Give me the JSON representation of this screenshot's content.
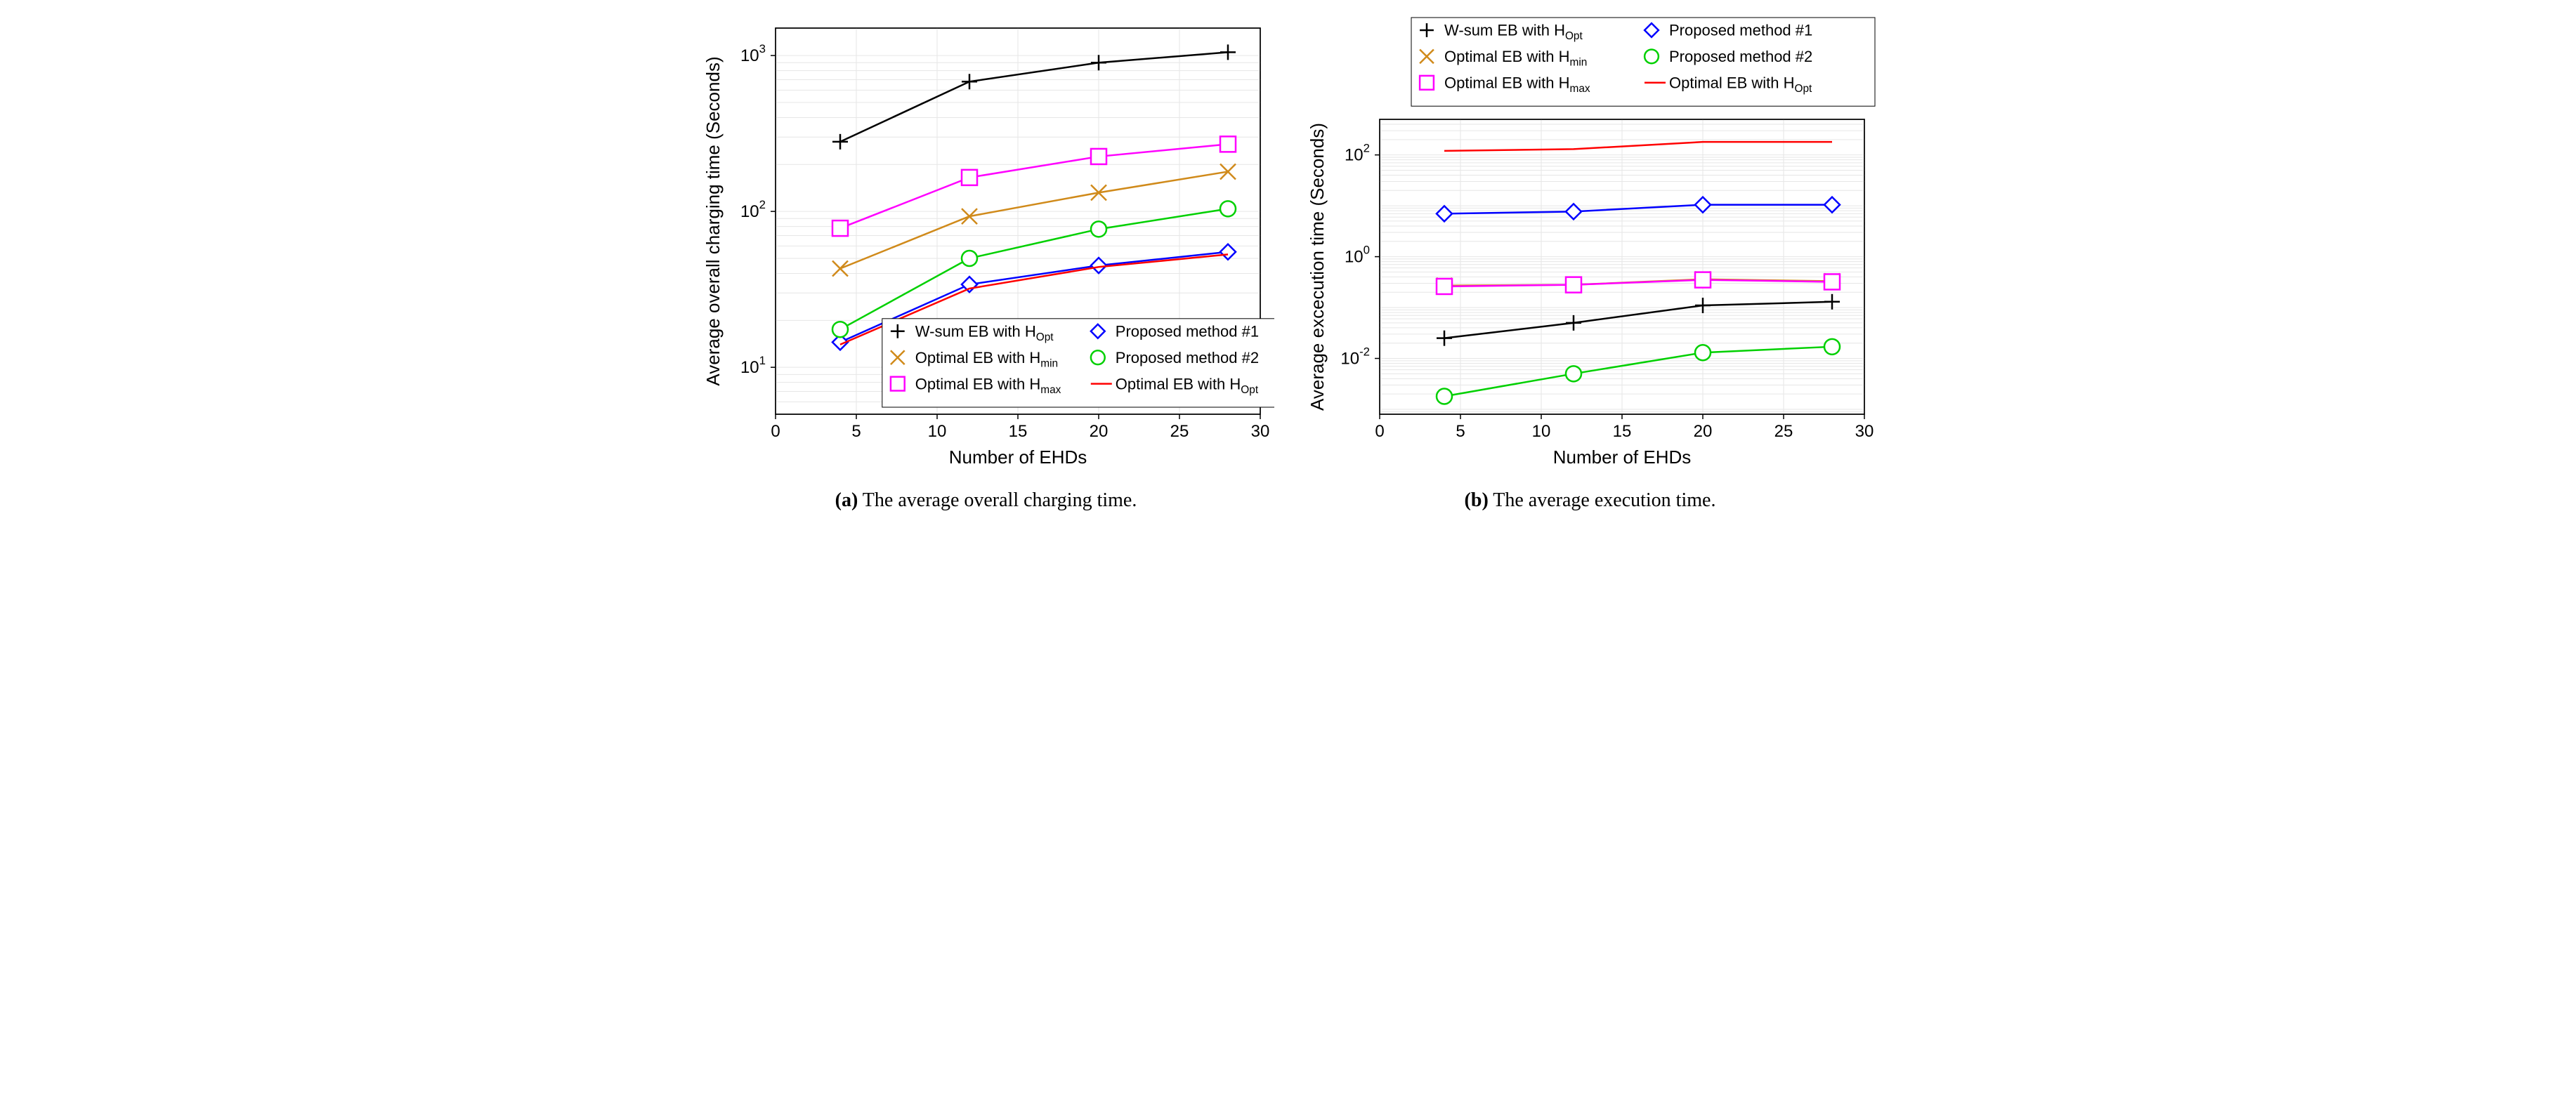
{
  "figure": {
    "caption_a": {
      "label": "(a)",
      "text": " The average overall charging time."
    },
    "caption_b": {
      "label": "(b)",
      "text": " The average execution time."
    }
  },
  "chart_a": {
    "type": "line-log",
    "xlabel": "Number of EHDs",
    "ylabel": "Average overall charging time (Seconds)",
    "label_fontsize": 26,
    "tick_fontsize": 24,
    "xlim": [
      0,
      30
    ],
    "xticks": [
      0,
      5,
      10,
      15,
      20,
      25,
      30
    ],
    "ylim": [
      5,
      1500
    ],
    "yticks": [
      10,
      100,
      1000
    ],
    "ytick_labels": [
      "10^1",
      "10^2",
      "10^3"
    ],
    "background_color": "#ffffff",
    "grid_color": "#e6e6e6",
    "axis_color": "#000000",
    "line_width": 2.5,
    "marker_size": 11,
    "legend_fontsize": 22,
    "legend_pos": "lower-inside",
    "series": [
      {
        "key": "wsum",
        "label": "W-sum EB with H",
        "sub": "Opt",
        "color": "#000000",
        "marker": "plus",
        "x": [
          4,
          12,
          20,
          28
        ],
        "y": [
          280,
          680,
          900,
          1050
        ]
      },
      {
        "key": "optmin",
        "label": "Optimal EB with H",
        "sub": "min",
        "color": "#d08a1a",
        "marker": "x",
        "x": [
          4,
          12,
          20,
          28
        ],
        "y": [
          43,
          93,
          132,
          180
        ]
      },
      {
        "key": "optmax",
        "label": "Optimal EB with H",
        "sub": "max",
        "color": "#ff00ff",
        "marker": "square",
        "x": [
          4,
          12,
          20,
          28
        ],
        "y": [
          78,
          165,
          225,
          270
        ]
      },
      {
        "key": "prop1",
        "label": "Proposed method #1",
        "sub": "",
        "color": "#0000ff",
        "marker": "diamond",
        "x": [
          4,
          12,
          20,
          28
        ],
        "y": [
          14.5,
          34,
          45,
          55
        ]
      },
      {
        "key": "prop2",
        "label": "Proposed method #2",
        "sub": "",
        "color": "#00d000",
        "marker": "circle",
        "x": [
          4,
          12,
          20,
          28
        ],
        "y": [
          17.5,
          50,
          77,
          104
        ]
      },
      {
        "key": "optopt",
        "label": "Optimal EB with H",
        "sub": "Opt",
        "color": "#ff0000",
        "marker": "none",
        "x": [
          4,
          12,
          20,
          28
        ],
        "y": [
          14,
          32,
          44,
          53
        ]
      }
    ]
  },
  "chart_b": {
    "type": "line-log",
    "xlabel": "Number of EHDs",
    "ylabel": "Average excecution time (Seconds)",
    "label_fontsize": 26,
    "tick_fontsize": 24,
    "xlim": [
      0,
      30
    ],
    "xticks": [
      0,
      5,
      10,
      15,
      20,
      25,
      30
    ],
    "ylim": [
      0.0008,
      500
    ],
    "yticks": [
      0.01,
      1,
      100
    ],
    "ytick_labels": [
      "10^-2",
      "10^0",
      "10^2"
    ],
    "background_color": "#ffffff",
    "grid_color": "#e6e6e6",
    "axis_color": "#000000",
    "line_width": 2.5,
    "marker_size": 11,
    "legend_fontsize": 22,
    "legend_pos": "top-outside",
    "series": [
      {
        "key": "wsum",
        "label": "W-sum EB with H",
        "sub": "Opt",
        "color": "#000000",
        "marker": "plus",
        "x": [
          4,
          12,
          20,
          28
        ],
        "y": [
          0.025,
          0.05,
          0.11,
          0.13
        ]
      },
      {
        "key": "optmin",
        "label": "Optimal EB with H",
        "sub": "min",
        "color": "#d08a1a",
        "marker": "x",
        "x": [
          4,
          12,
          20,
          28
        ],
        "y": [
          0.27,
          0.28,
          0.36,
          0.33
        ]
      },
      {
        "key": "optmax",
        "label": "Optimal EB with H",
        "sub": "max",
        "color": "#ff00ff",
        "marker": "square",
        "x": [
          4,
          12,
          20,
          28
        ],
        "y": [
          0.26,
          0.28,
          0.35,
          0.32
        ]
      },
      {
        "key": "prop1",
        "label": "Proposed method #1",
        "sub": "",
        "color": "#0000ff",
        "marker": "diamond",
        "x": [
          4,
          12,
          20,
          28
        ],
        "y": [
          7,
          7.7,
          10.5,
          10.5
        ]
      },
      {
        "key": "prop2",
        "label": "Proposed method #2",
        "sub": "",
        "color": "#00d000",
        "marker": "circle",
        "x": [
          4,
          12,
          20,
          28
        ],
        "y": [
          0.0018,
          0.005,
          0.013,
          0.017
        ]
      },
      {
        "key": "optopt",
        "label": "Optimal EB with H",
        "sub": "Opt",
        "color": "#ff0000",
        "marker": "none",
        "x": [
          4,
          12,
          20,
          28
        ],
        "y": [
          120,
          130,
          180,
          180
        ]
      }
    ]
  }
}
